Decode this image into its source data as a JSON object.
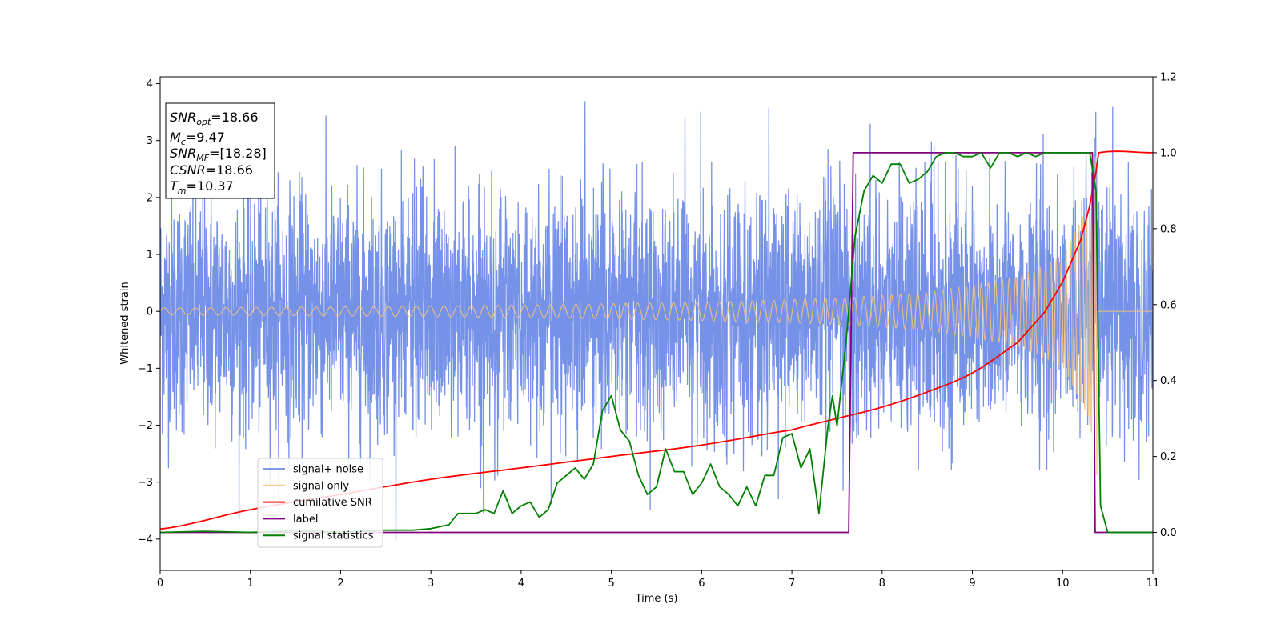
{
  "chart_data": {
    "type": "line",
    "xlabel": "Time (s)",
    "ylabel": "Whitened strain",
    "xlim": [
      0,
      11
    ],
    "ylim": [
      -4.55,
      4.12
    ],
    "y2lim": [
      -0.1,
      1.2
    ],
    "x_ticks": [
      0,
      1,
      2,
      3,
      4,
      5,
      6,
      7,
      8,
      9,
      10,
      11
    ],
    "y_ticks": [
      -4,
      -3,
      -2,
      -1,
      0,
      1,
      2,
      3,
      4
    ],
    "y2_ticks": [
      0.0,
      0.2,
      0.4,
      0.6,
      0.8,
      1.0,
      1.2
    ],
    "grid": false,
    "legend_position": "lower-left",
    "colors": {
      "signal_noise": "#6a88e6",
      "signal_only": "#f5c27a",
      "cumulative_snr": "#ff0000",
      "label": "#800080",
      "signal_statistics": "#008000"
    },
    "series": [
      {
        "name": "signal+ noise",
        "axis": "left",
        "x_range": [
          0,
          11
        ],
        "approx_amplitude": 1.9,
        "peak_max": 3.72,
        "peak_min": -4.15
      },
      {
        "name": "signal only",
        "axis": "left",
        "x_range": [
          0,
          10.38
        ],
        "envelope": [
          [
            0,
            0.06
          ],
          [
            2,
            0.08
          ],
          [
            4,
            0.11
          ],
          [
            6,
            0.16
          ],
          [
            7.5,
            0.23
          ],
          [
            8.5,
            0.33
          ],
          [
            9.5,
            0.6
          ],
          [
            10.0,
            0.95
          ],
          [
            10.3,
            1.9
          ],
          [
            10.38,
            2.9
          ]
        ],
        "after_merger": 0
      },
      {
        "name": "cumilative SNR",
        "axis": "right",
        "x": [
          0,
          1,
          2,
          3,
          4,
          5,
          6,
          7,
          7.5,
          8,
          8.5,
          9,
          9.5,
          9.8,
          10.0,
          10.2,
          10.3,
          10.37,
          10.4,
          11
        ],
        "y": [
          0.009,
          0.06,
          0.1,
          0.14,
          0.17,
          0.2,
          0.23,
          0.27,
          0.3,
          0.33,
          0.37,
          0.42,
          0.5,
          0.58,
          0.66,
          0.77,
          0.86,
          0.95,
          1.0,
          1.0
        ]
      },
      {
        "name": "label",
        "axis": "right",
        "x": [
          0,
          7.63,
          7.68,
          10.33,
          10.36,
          11
        ],
        "y": [
          0,
          0,
          1,
          1,
          0,
          0
        ]
      },
      {
        "name": "signal statistics",
        "axis": "right",
        "x": [
          0,
          0.5,
          1,
          1.5,
          2,
          2.5,
          2.8,
          3.0,
          3.2,
          3.3,
          3.4,
          3.5,
          3.6,
          3.7,
          3.8,
          3.9,
          4.0,
          4.1,
          4.2,
          4.3,
          4.4,
          4.5,
          4.6,
          4.7,
          4.8,
          4.9,
          5.0,
          5.1,
          5.2,
          5.3,
          5.4,
          5.5,
          5.6,
          5.7,
          5.8,
          5.9,
          6.0,
          6.1,
          6.2,
          6.3,
          6.4,
          6.5,
          6.6,
          6.7,
          6.8,
          6.9,
          7.0,
          7.1,
          7.2,
          7.3,
          7.4,
          7.45,
          7.5,
          7.6,
          7.7,
          7.8,
          7.9,
          8.0,
          8.1,
          8.2,
          8.3,
          8.4,
          8.5,
          8.6,
          8.7,
          8.8,
          8.9,
          9.0,
          9.1,
          9.2,
          9.3,
          9.4,
          9.5,
          9.6,
          9.7,
          9.8,
          9.9,
          10.0,
          10.1,
          10.2,
          10.3,
          10.37,
          10.42,
          10.5,
          11
        ],
        "y": [
          0.0,
          0.003,
          0.0,
          0.005,
          0.0,
          0.006,
          0.006,
          0.01,
          0.02,
          0.05,
          0.05,
          0.05,
          0.06,
          0.05,
          0.11,
          0.05,
          0.07,
          0.08,
          0.04,
          0.06,
          0.13,
          0.15,
          0.17,
          0.14,
          0.18,
          0.32,
          0.36,
          0.27,
          0.24,
          0.15,
          0.1,
          0.12,
          0.22,
          0.16,
          0.16,
          0.1,
          0.13,
          0.18,
          0.12,
          0.1,
          0.07,
          0.12,
          0.07,
          0.15,
          0.15,
          0.25,
          0.26,
          0.17,
          0.22,
          0.05,
          0.28,
          0.36,
          0.28,
          0.5,
          0.78,
          0.9,
          0.94,
          0.92,
          0.97,
          0.97,
          0.92,
          0.93,
          0.95,
          0.99,
          1.0,
          1.0,
          0.99,
          0.99,
          1.0,
          0.96,
          1.0,
          1.0,
          0.99,
          1.0,
          0.99,
          1.0,
          1.0,
          1.0,
          1.0,
          1.0,
          1.0,
          0.9,
          0.07,
          0.0,
          0.0
        ]
      }
    ],
    "info_box": [
      {
        "name": "SNR",
        "sub": "opt",
        "value": "=18.66"
      },
      {
        "name": "M",
        "sub": "c",
        "value": "=9.47"
      },
      {
        "name": "SNR",
        "sub": "MF",
        "value": "=[18.28]"
      },
      {
        "name": "CSNR",
        "sub": "",
        "value": "=18.66"
      },
      {
        "name": "T",
        "sub": "m",
        "value": "=10.37"
      }
    ]
  }
}
